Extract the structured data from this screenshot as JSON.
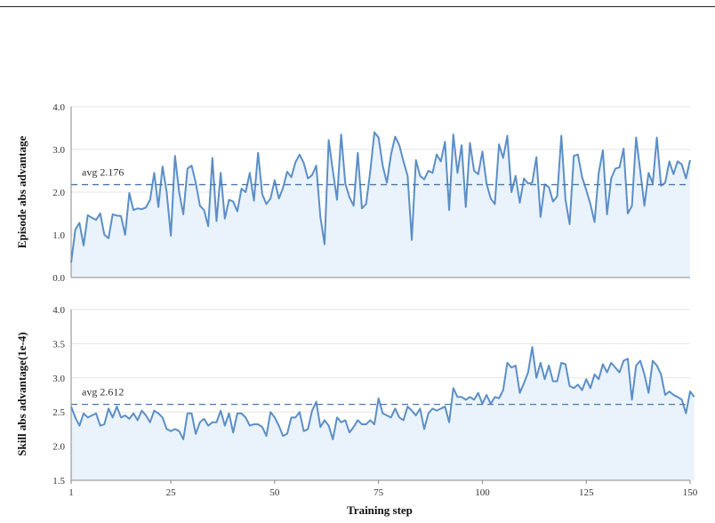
{
  "chart_data": [
    {
      "type": "line",
      "title": "",
      "ylabel": "Episode abs advantage",
      "xlabel": "",
      "ylim": [
        0.0,
        4.0
      ],
      "yticks": [
        "0.0",
        "1.0",
        "2.0",
        "3.0",
        "4.0"
      ],
      "grid": true,
      "avg": 2.176,
      "avg_label": "avg 2.176",
      "color": "#5b8fc7",
      "fill": "#eaf2fb",
      "series": [
        {
          "x_start": 1,
          "values": [
            0.35,
            1.12,
            1.28,
            0.75,
            1.46,
            1.4,
            1.35,
            1.5,
            1.0,
            0.92,
            1.48,
            1.45,
            1.44,
            1.0,
            1.98,
            1.58,
            1.62,
            1.6,
            1.64,
            1.82,
            2.45,
            1.65,
            2.6,
            2.0,
            0.98,
            2.85,
            2.0,
            1.48,
            2.55,
            2.62,
            2.22,
            1.68,
            1.58,
            1.2,
            2.8,
            1.32,
            2.45,
            1.38,
            1.82,
            1.78,
            1.55,
            2.08,
            2.0,
            2.45,
            1.8,
            2.92,
            1.95,
            1.72,
            1.85,
            2.28,
            1.85,
            2.1,
            2.48,
            2.35,
            2.7,
            2.88,
            2.68,
            2.32,
            2.4,
            2.62,
            1.42,
            0.78,
            3.22,
            2.5,
            1.82,
            3.35,
            2.2,
            1.88,
            1.68,
            2.92,
            1.62,
            1.72,
            2.48,
            3.4,
            3.28,
            2.62,
            2.22,
            2.88,
            3.3,
            3.1,
            2.72,
            2.38,
            0.88,
            2.75,
            2.38,
            2.3,
            2.5,
            2.45,
            2.88,
            2.72,
            3.18,
            1.58,
            3.35,
            2.45,
            3.1,
            1.65,
            3.15,
            2.5,
            2.42,
            2.95,
            2.2,
            1.85,
            1.72,
            3.12,
            2.8,
            3.32,
            2.0,
            2.38,
            1.75,
            2.32,
            2.2,
            2.22,
            2.82,
            1.42,
            2.18,
            2.12,
            1.78,
            1.9,
            3.32,
            1.82,
            1.25,
            2.85,
            2.88,
            2.35,
            2.05,
            1.72,
            1.3,
            2.45,
            2.98,
            1.48,
            2.32,
            2.55,
            2.58,
            3.02,
            1.5,
            1.68,
            3.28,
            2.5,
            1.68,
            2.45,
            2.2,
            3.28,
            2.15,
            2.22,
            2.72,
            2.42,
            2.72,
            2.65,
            2.32,
            2.75
          ]
        }
      ]
    },
    {
      "type": "line",
      "title": "",
      "ylabel": "Skill abs advantage(1e-4)",
      "xlabel": "Training step",
      "ylim": [
        1.5,
        4.0
      ],
      "yticks": [
        "1.5",
        "2.0",
        "2.5",
        "3.0",
        "3.5",
        "4.0"
      ],
      "xticks": [
        "1",
        "25",
        "50",
        "75",
        "100",
        "125",
        "150"
      ],
      "grid": true,
      "avg": 2.612,
      "avg_label": "avg 2.612",
      "color": "#5b8fc7",
      "fill": "#eaf2fb",
      "series": [
        {
          "x_start": 1,
          "values": [
            2.58,
            2.42,
            2.3,
            2.48,
            2.42,
            2.45,
            2.48,
            2.3,
            2.32,
            2.55,
            2.42,
            2.58,
            2.42,
            2.45,
            2.4,
            2.48,
            2.38,
            2.52,
            2.45,
            2.35,
            2.52,
            2.48,
            2.42,
            2.25,
            2.22,
            2.25,
            2.22,
            2.1,
            2.48,
            2.48,
            2.18,
            2.35,
            2.4,
            2.3,
            2.35,
            2.35,
            2.52,
            2.3,
            2.48,
            2.2,
            2.48,
            2.48,
            2.42,
            2.3,
            2.32,
            2.32,
            2.28,
            2.15,
            2.5,
            2.42,
            2.3,
            2.15,
            2.18,
            2.42,
            2.42,
            2.5,
            2.22,
            2.25,
            2.52,
            2.65,
            2.28,
            2.38,
            2.3,
            2.1,
            2.42,
            2.35,
            2.38,
            2.2,
            2.28,
            2.38,
            2.32,
            2.32,
            2.38,
            2.32,
            2.7,
            2.48,
            2.45,
            2.42,
            2.55,
            2.42,
            2.38,
            2.58,
            2.52,
            2.45,
            2.55,
            2.25,
            2.48,
            2.55,
            2.52,
            2.55,
            2.58,
            2.35,
            2.85,
            2.72,
            2.72,
            2.68,
            2.72,
            2.68,
            2.78,
            2.62,
            2.75,
            2.62,
            2.72,
            2.7,
            2.82,
            3.22,
            3.15,
            3.18,
            2.78,
            2.92,
            3.08,
            3.45,
            3.0,
            3.22,
            2.98,
            3.18,
            2.95,
            2.95,
            3.22,
            3.2,
            2.88,
            2.85,
            2.9,
            2.82,
            2.98,
            2.85,
            3.05,
            2.98,
            3.2,
            3.08,
            3.22,
            3.15,
            3.08,
            3.25,
            3.28,
            2.68,
            3.18,
            3.25,
            3.05,
            2.78,
            3.25,
            3.18,
            3.05,
            2.75,
            2.8,
            2.75,
            2.72,
            2.68,
            2.48,
            2.8,
            2.72
          ]
        }
      ]
    }
  ]
}
